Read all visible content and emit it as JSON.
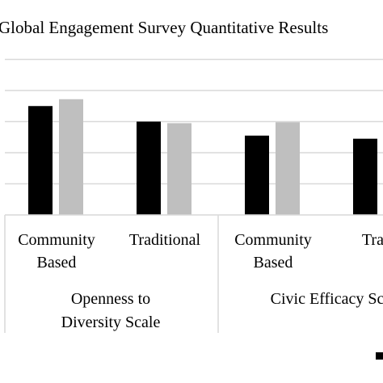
{
  "chart_data": {
    "type": "bar",
    "title": "Global Engagement Survey Quantitative Results",
    "groups": [
      {
        "label": "Openness to Diversity Scale",
        "label_lines": [
          "Openness to",
          "Diversity Scale"
        ],
        "categories": [
          {
            "label": "Community Based",
            "label_lines": [
              "Community",
              "Based"
            ]
          },
          {
            "label": "Traditional",
            "label_lines": [
              "Traditional"
            ]
          }
        ]
      },
      {
        "label": "Civic Efficacy Sc",
        "label_lines": [
          "Civic Efficacy Sc"
        ],
        "categories": [
          {
            "label": "Community Based",
            "label_lines": [
              "Community",
              "Based"
            ]
          },
          {
            "label": "Tradit",
            "label_lines": [
              "Tradit"
            ]
          }
        ]
      }
    ],
    "series": [
      {
        "color": "#000000",
        "values": [
          3.5,
          3.0,
          2.55,
          2.45
        ]
      },
      {
        "color": "#bfbfbf",
        "values": [
          3.72,
          2.95,
          2.98,
          null
        ]
      }
    ],
    "ylim": [
      0,
      5
    ],
    "grid": true,
    "legend": "bottom"
  }
}
